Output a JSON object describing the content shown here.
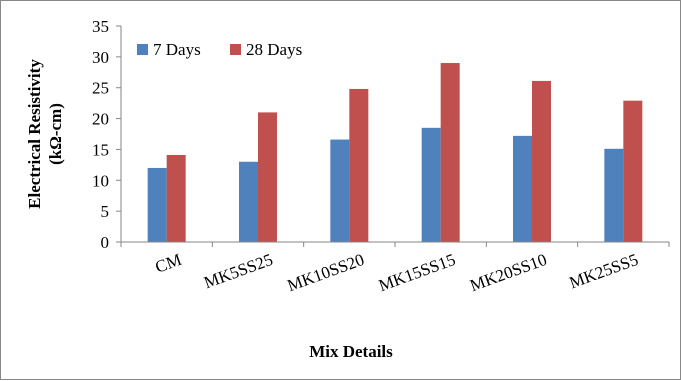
{
  "chart_data": {
    "type": "bar",
    "title": "",
    "xlabel": "Mix Details",
    "ylabel_line1": "Electrical Resistivity",
    "ylabel_line2": "(kΩ-cm)",
    "ylim": [
      0,
      35
    ],
    "yticks": [
      0,
      5,
      10,
      15,
      20,
      25,
      30,
      35
    ],
    "categories": [
      "CM",
      "MK5SS25",
      "MK10SS20",
      "MK15SS15",
      "MK20SS10",
      "MK25SS5"
    ],
    "series": [
      {
        "name": "7 Days",
        "color": "#4F81BD",
        "values": [
          12.0,
          13.0,
          16.6,
          18.5,
          17.2,
          15.1
        ]
      },
      {
        "name": "28 Days",
        "color": "#C0504D",
        "values": [
          14.1,
          21.0,
          24.8,
          29.0,
          26.1,
          22.9
        ]
      }
    ],
    "grid": false,
    "legend_position": "top-left"
  }
}
